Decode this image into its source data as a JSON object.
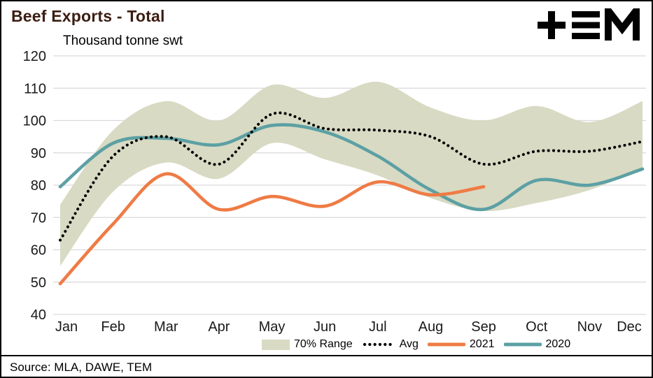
{
  "title": "Beef Exports - Total",
  "subtitle": "Thousand tonne swt",
  "source": "Source: MLA, DAWE, TEM",
  "logo_name": "TEM",
  "colors": {
    "title": "#3B1D12",
    "band": "#D8DAC3",
    "grid": "#D9D9D9",
    "avg": "#000000",
    "y2021": "#EF7B45",
    "y2020": "#5CA0A4",
    "axis_text": "#1A1A1A"
  },
  "legend": {
    "items": [
      {
        "label": "70% Range",
        "type": "band"
      },
      {
        "label": "Avg",
        "type": "dotted"
      },
      {
        "label": "2021",
        "type": "line"
      },
      {
        "label": "2020",
        "type": "line"
      }
    ]
  },
  "chart_data": {
    "type": "line",
    "title": "Beef Exports - Total",
    "ylabel": "Thousand tonne swt",
    "xlabel": "",
    "ylim": [
      40,
      120
    ],
    "ytick_step": 10,
    "grid": "horizontal",
    "legend_position": "bottom",
    "categories": [
      "Jan",
      "Feb",
      "Mar",
      "Apr",
      "May",
      "Jun",
      "Jul",
      "Aug",
      "Sep",
      "Oct",
      "Nov",
      "Dec"
    ],
    "series": [
      {
        "name": "70% Range",
        "kind": "band",
        "upper": [
          74,
          97,
          106,
          100,
          111,
          107,
          112,
          104,
          100,
          104.5,
          99.5,
          106
        ],
        "lower": [
          55,
          78,
          87,
          82,
          93,
          88,
          83,
          76,
          72,
          74.5,
          78.5,
          85
        ]
      },
      {
        "name": "Avg",
        "kind": "dotted",
        "values": [
          63,
          89,
          95,
          86.5,
          102,
          97.5,
          97,
          95,
          86.5,
          90.5,
          90.5,
          93.5
        ]
      },
      {
        "name": "2021",
        "kind": "line",
        "values": [
          49.5,
          68,
          83.5,
          72.5,
          76.5,
          73.5,
          81,
          77,
          79.5
        ]
      },
      {
        "name": "2020",
        "kind": "line",
        "values": [
          79.5,
          93,
          94.5,
          92.5,
          98.5,
          96.5,
          89,
          78.5,
          72.5,
          81.5,
          80,
          85
        ]
      }
    ]
  }
}
